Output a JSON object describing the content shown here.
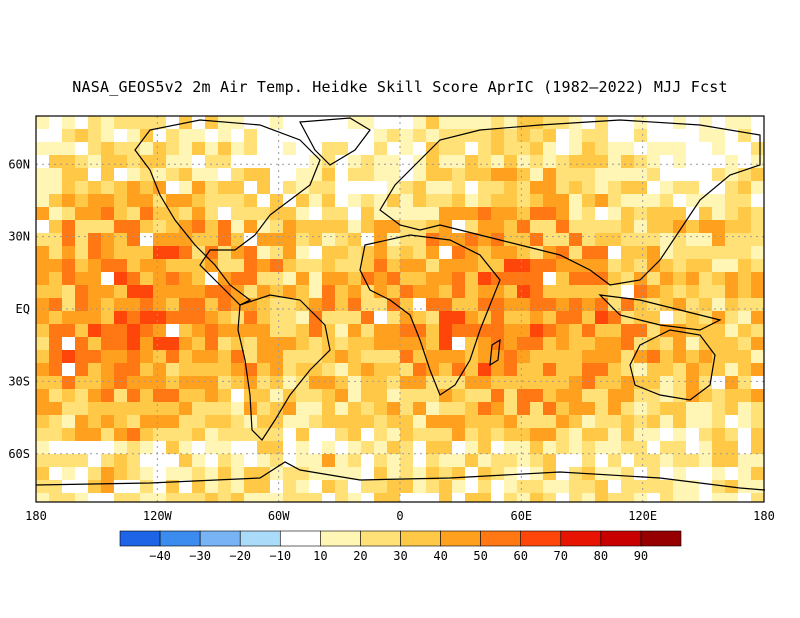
{
  "title": "NASA_GEOS5v2 2m Air Temp. Heidke Skill Score AprIC (1982—2022) MJJ Fcst",
  "lat_ticks": [
    "60N",
    "30N",
    "EQ",
    "30S",
    "60S"
  ],
  "lon_ticks": [
    "180",
    "120W",
    "60W",
    "0",
    "60E",
    "120E",
    "180"
  ],
  "colorbar": {
    "labels": [
      "−40",
      "−30",
      "−20",
      "−10",
      "10",
      "20",
      "30",
      "40",
      "50",
      "60",
      "70",
      "80",
      "90"
    ],
    "colors": [
      "#1e64e6",
      "#3c8cf0",
      "#78b4f5",
      "#aadcfa",
      "#ffffff",
      "#fff5b4",
      "#ffe178",
      "#ffc846",
      "#ffa01e",
      "#ff7814",
      "#ff460a",
      "#e61400",
      "#c80000",
      "#960000"
    ]
  },
  "map_extent": {
    "lon": [
      -180,
      180
    ],
    "lat": [
      -80,
      80
    ]
  }
}
